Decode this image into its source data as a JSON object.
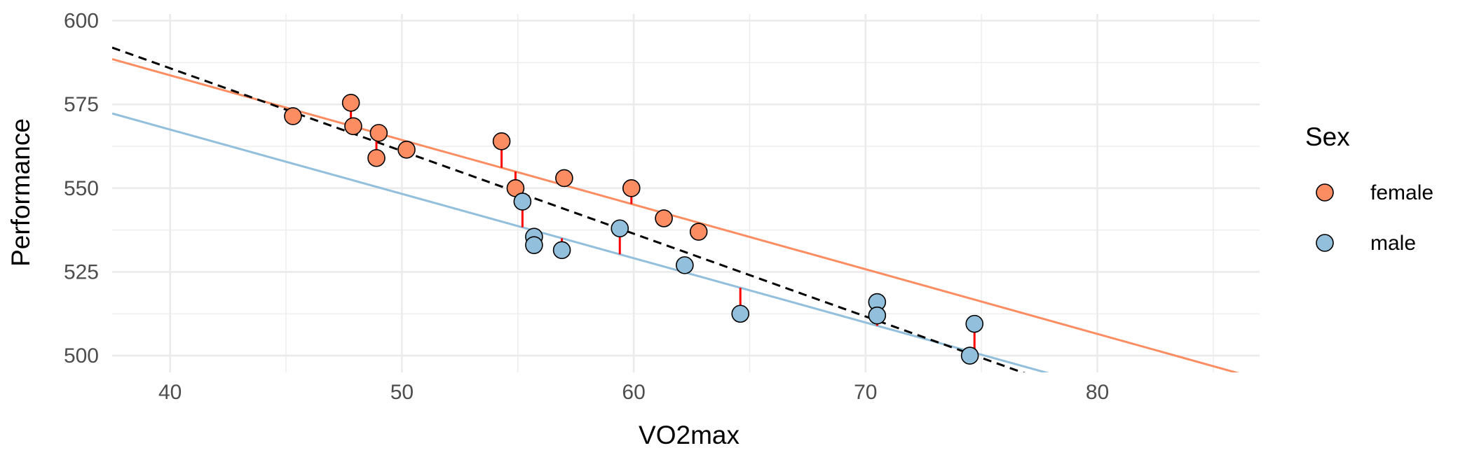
{
  "chart_data": {
    "type": "scatter",
    "title": "",
    "xlabel": "VO2max",
    "ylabel": "Performance",
    "xlim": [
      37.5,
      87
    ],
    "ylim": [
      495,
      602
    ],
    "x_ticks": [
      40,
      50,
      60,
      70,
      80
    ],
    "y_ticks": [
      500,
      525,
      550,
      575,
      600
    ],
    "grid": true,
    "legend": {
      "title": "Sex",
      "placement": "right",
      "entries": [
        "female",
        "male"
      ]
    },
    "colors": {
      "female": "#FC8D62",
      "male": "#92BFDB",
      "residual": "#FF0000",
      "overall_fit": "#000000",
      "grid": "#EBEBEB"
    },
    "series": [
      {
        "name": "female",
        "points": [
          {
            "x": 45.3,
            "y": 571.5
          },
          {
            "x": 47.8,
            "y": 575.5
          },
          {
            "x": 47.9,
            "y": 568.5
          },
          {
            "x": 48.9,
            "y": 559.0
          },
          {
            "x": 49.0,
            "y": 566.5
          },
          {
            "x": 50.2,
            "y": 561.5
          },
          {
            "x": 54.3,
            "y": 564.0
          },
          {
            "x": 54.9,
            "y": 550.0
          },
          {
            "x": 57.0,
            "y": 553.0
          },
          {
            "x": 59.9,
            "y": 550.0
          },
          {
            "x": 61.3,
            "y": 541.0
          },
          {
            "x": 62.8,
            "y": 537.0
          }
        ],
        "fit": {
          "slope": -1.93,
          "intercept": 660.9
        }
      },
      {
        "name": "male",
        "points": [
          {
            "x": 55.2,
            "y": 546.0
          },
          {
            "x": 55.7,
            "y": 535.5
          },
          {
            "x": 55.7,
            "y": 533.0
          },
          {
            "x": 56.9,
            "y": 531.5
          },
          {
            "x": 59.4,
            "y": 538.0
          },
          {
            "x": 62.2,
            "y": 527.0
          },
          {
            "x": 64.6,
            "y": 512.5
          },
          {
            "x": 70.5,
            "y": 516.0
          },
          {
            "x": 70.5,
            "y": 512.0
          },
          {
            "x": 74.5,
            "y": 500.0
          },
          {
            "x": 74.7,
            "y": 509.5
          }
        ],
        "fit": {
          "slope": -1.92,
          "intercept": 644.3
        }
      }
    ],
    "overall_fit": {
      "slope": -2.47,
      "intercept": 684.6,
      "style": "dashed"
    }
  }
}
